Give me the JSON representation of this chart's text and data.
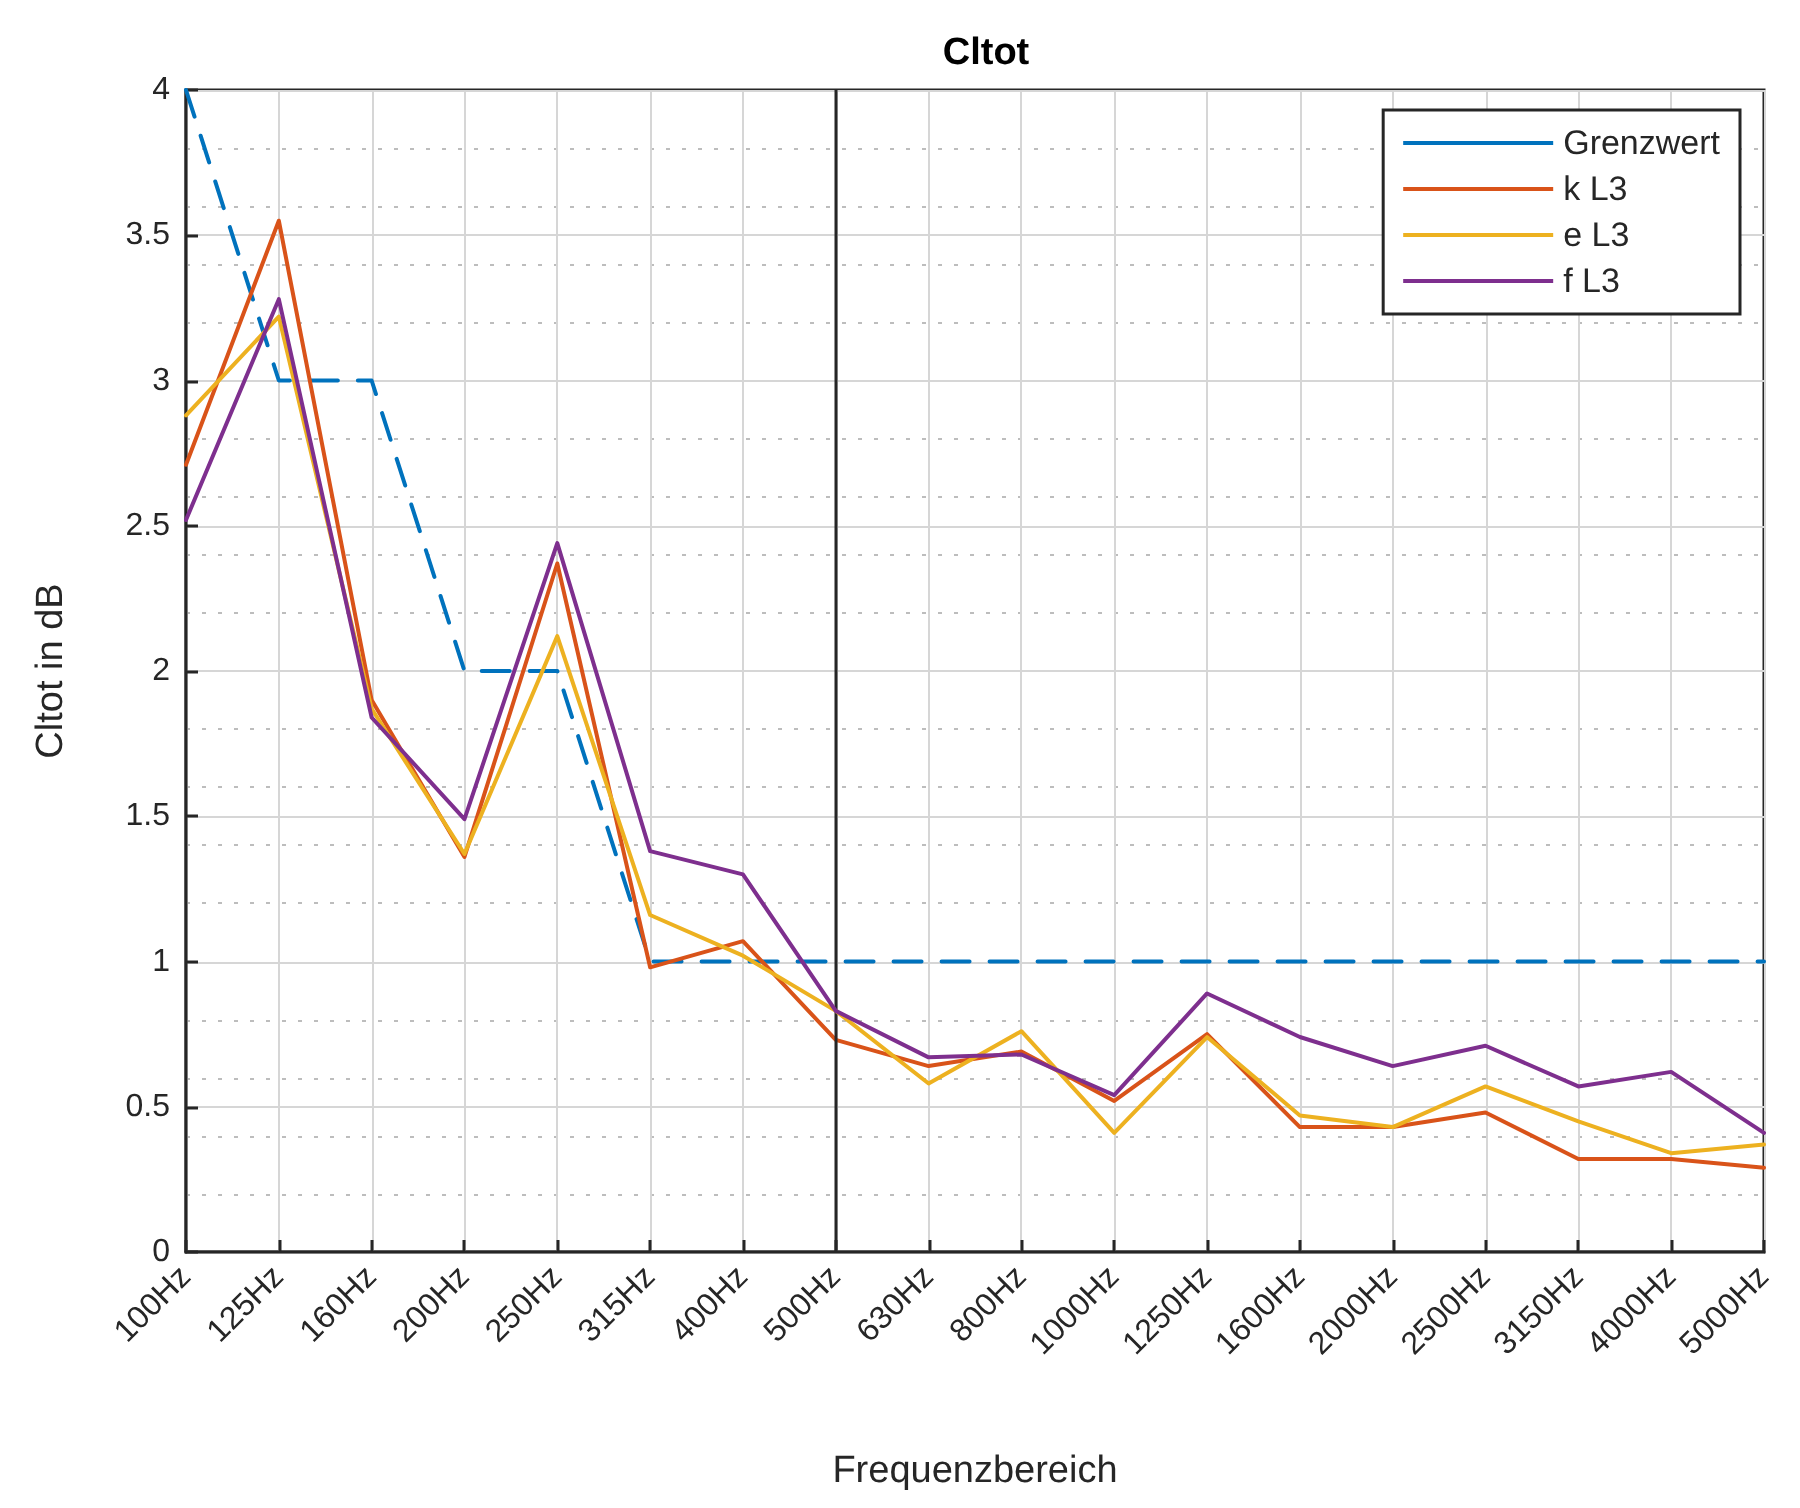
{
  "chart_data": {
    "type": "line",
    "title": "Cltot",
    "xlabel": "Frequenzbereich",
    "ylabel": "Cltot in dB",
    "categories": [
      "100Hz",
      "125Hz",
      "160Hz",
      "200Hz",
      "250Hz",
      "315Hz",
      "400Hz",
      "500Hz",
      "630Hz",
      "800Hz",
      "1000Hz",
      "1250Hz",
      "1600Hz",
      "2000Hz",
      "2500Hz",
      "3150Hz",
      "4000Hz",
      "5000Hz"
    ],
    "series": [
      {
        "name": "Grenzwert",
        "color": "#0072bd",
        "line_style": "dashed",
        "values": [
          4,
          3,
          3,
          2,
          2,
          1,
          1,
          1,
          1,
          1,
          1,
          1,
          1,
          1,
          1,
          1,
          1,
          1
        ]
      },
      {
        "name": "k L3",
        "color": "#d95319",
        "values": [
          2.71,
          3.55,
          1.9,
          1.36,
          2.37,
          0.98,
          1.07,
          0.73,
          0.64,
          0.69,
          0.52,
          0.75,
          0.43,
          0.43,
          0.48,
          0.32,
          0.32,
          0.29
        ]
      },
      {
        "name": "e L3",
        "color": "#edb120",
        "values": [
          2.88,
          3.22,
          1.87,
          1.37,
          2.12,
          1.16,
          1.02,
          0.83,
          0.58,
          0.76,
          0.41,
          0.74,
          0.47,
          0.43,
          0.57,
          0.45,
          0.34,
          0.37
        ]
      },
      {
        "name": "f L3",
        "color": "#7e2f8e",
        "values": [
          2.52,
          3.28,
          1.84,
          1.49,
          2.44,
          1.38,
          1.3,
          0.83,
          0.67,
          0.68,
          0.54,
          0.89,
          0.74,
          0.64,
          0.71,
          0.57,
          0.62,
          0.41
        ]
      }
    ],
    "ylim": [
      0,
      4
    ],
    "yticks": [
      0,
      0.5,
      1,
      1.5,
      2,
      2.5,
      3,
      3.5,
      4
    ],
    "ref_lines": [
      {
        "axis": "x",
        "value": "500Hz",
        "color": "#262626",
        "line_style": "solid"
      }
    ],
    "grid": true,
    "legend": "top right",
    "marker": "none",
    "line_style": "solid"
  }
}
